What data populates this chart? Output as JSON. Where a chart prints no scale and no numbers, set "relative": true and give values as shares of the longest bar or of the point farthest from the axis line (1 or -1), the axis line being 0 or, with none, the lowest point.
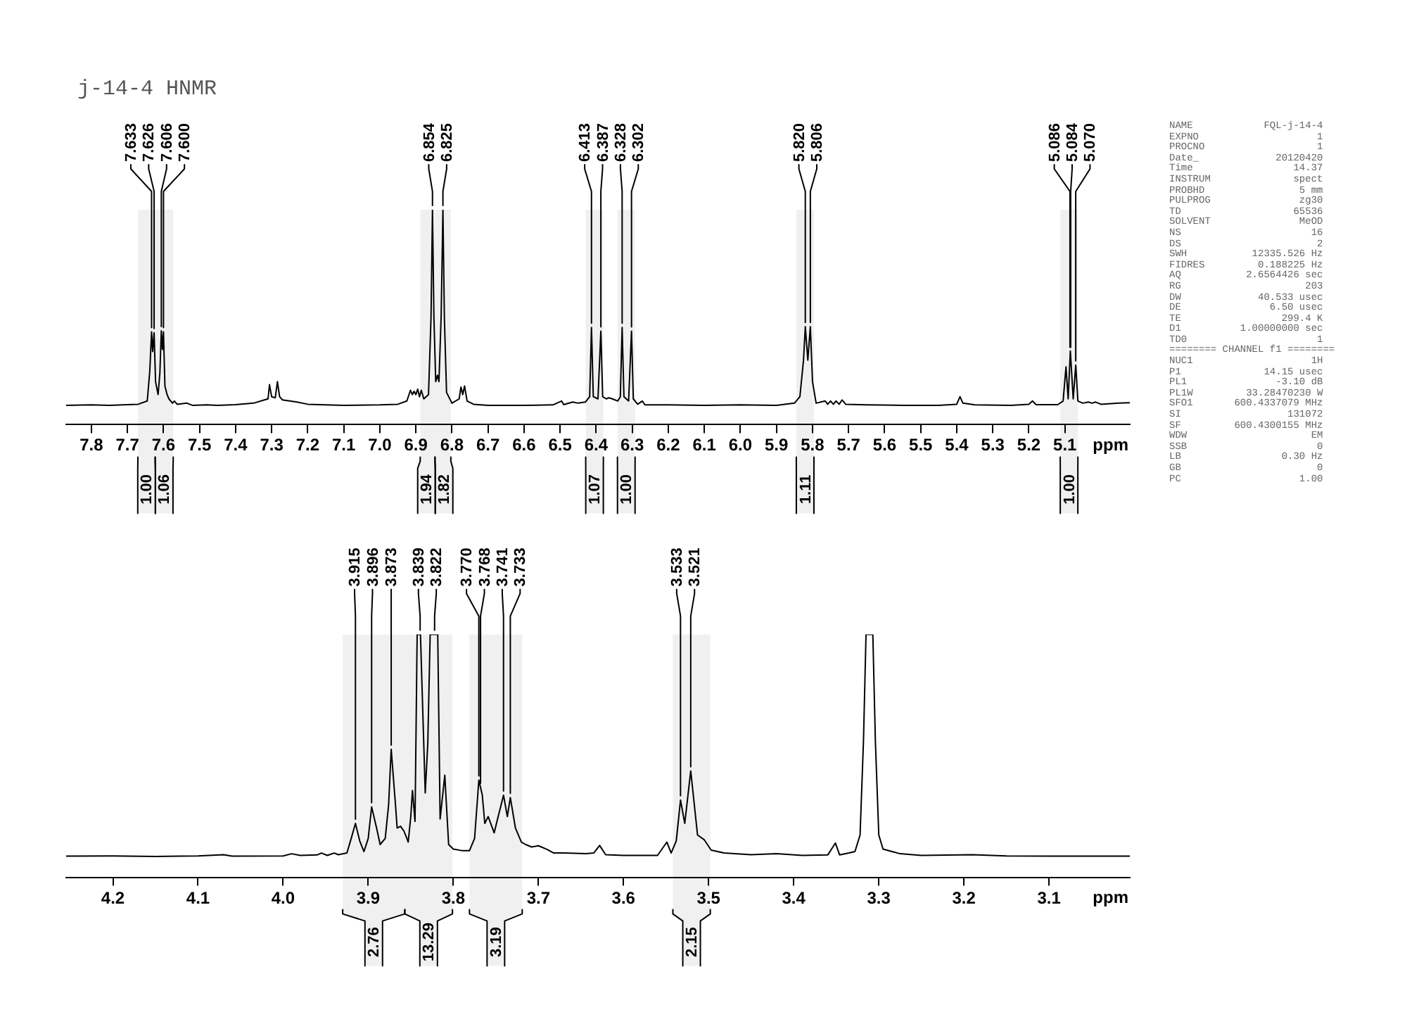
{
  "chart_data": [
    {
      "type": "line",
      "title": "j-14-4 HNMR",
      "xlabel": "ppm",
      "relative": true,
      "color": "#000000",
      "marker": "none",
      "xlim": [
        7.87,
        4.92
      ],
      "xticks": [
        7.8,
        7.7,
        7.6,
        7.5,
        7.4,
        7.3,
        7.2,
        7.1,
        {
          "value": 7,
          "label": "7.0"
        },
        6.9,
        6.8,
        6.7,
        6.6,
        6.5,
        6.4,
        6.3,
        6.2,
        6.1,
        {
          "value": 6,
          "label": "6.0"
        },
        5.9,
        5.8,
        5.7,
        5.6,
        5.5,
        5.4,
        5.3,
        5.2,
        5.1
      ],
      "x": [
        7.87,
        7.8,
        7.75,
        7.7,
        7.67,
        7.645,
        7.638,
        7.633,
        7.63,
        7.626,
        7.622,
        7.615,
        7.61,
        7.606,
        7.603,
        7.6,
        7.596,
        7.59,
        7.585,
        7.575,
        7.57,
        7.562,
        7.535,
        7.52,
        7.48,
        7.45,
        7.4,
        7.35,
        7.32,
        7.31,
        7.306,
        7.3,
        7.29,
        7.284,
        7.278,
        7.27,
        7.25,
        7.23,
        7.2,
        7.1,
        7.0,
        6.95,
        6.925,
        6.915,
        6.91,
        6.905,
        6.9,
        6.895,
        6.89,
        6.885,
        6.878,
        6.865,
        6.858,
        6.854,
        6.85,
        6.845,
        6.84,
        6.836,
        6.83,
        6.825,
        6.821,
        6.815,
        6.8,
        6.78,
        6.775,
        6.77,
        6.765,
        6.758,
        6.74,
        6.7,
        6.6,
        6.52,
        6.496,
        6.49,
        6.465,
        6.45,
        6.43,
        6.418,
        6.413,
        6.408,
        6.395,
        6.387,
        6.382,
        6.372,
        6.365,
        6.355,
        6.34,
        6.333,
        6.328,
        6.323,
        6.31,
        6.302,
        6.297,
        6.285,
        6.272,
        6.265,
        6.2,
        6.1,
        6.0,
        5.9,
        5.85,
        5.835,
        5.825,
        5.82,
        5.813,
        5.806,
        5.8,
        5.79,
        5.765,
        5.758,
        5.75,
        5.742,
        5.735,
        5.726,
        5.718,
        5.708,
        5.65,
        5.55,
        5.45,
        5.4,
        5.391,
        5.383,
        5.35,
        5.25,
        5.2,
        5.19,
        5.18,
        5.12,
        5.105,
        5.097,
        5.091,
        5.085,
        5.077,
        5.07,
        5.064,
        5.05,
        5.035,
        5.025,
        5.015,
        5.0,
        4.95,
        4.92
      ],
      "values": [
        0.09,
        0.092,
        0.09,
        0.093,
        0.095,
        0.11,
        0.25,
        0.432,
        0.34,
        0.428,
        0.2,
        0.14,
        0.24,
        0.437,
        0.35,
        0.432,
        0.18,
        0.14,
        0.12,
        0.1,
        0.11,
        0.095,
        0.1,
        0.09,
        0.092,
        0.09,
        0.093,
        0.1,
        0.115,
        0.12,
        0.186,
        0.13,
        0.125,
        0.2,
        0.13,
        0.115,
        0.11,
        0.105,
        0.095,
        0.09,
        0.092,
        0.095,
        0.11,
        0.16,
        0.14,
        0.155,
        0.14,
        0.165,
        0.13,
        0.16,
        0.12,
        0.14,
        0.5,
        1,
        0.5,
        0.2,
        0.23,
        0.2,
        0.5,
        1,
        0.5,
        0.15,
        0.1,
        0.12,
        0.175,
        0.14,
        0.18,
        0.11,
        0.095,
        0.09,
        0.09,
        0.092,
        0.11,
        0.093,
        0.105,
        0.1,
        0.105,
        0.13,
        0.452,
        0.13,
        0.12,
        0.435,
        0.13,
        0.12,
        0.125,
        0.12,
        0.11,
        0.13,
        0.452,
        0.13,
        0.11,
        0.435,
        0.12,
        0.095,
        0.11,
        0.092,
        0.092,
        0.09,
        0.092,
        0.09,
        0.1,
        0.13,
        0.3,
        0.456,
        0.3,
        0.456,
        0.2,
        0.1,
        0.11,
        0.095,
        0.11,
        0.095,
        0.11,
        0.095,
        0.115,
        0.095,
        0.092,
        0.09,
        0.09,
        0.095,
        0.13,
        0.1,
        0.092,
        0.09,
        0.095,
        0.11,
        0.093,
        0.093,
        0.11,
        0.269,
        0.12,
        0.343,
        0.12,
        0.277,
        0.11,
        0.1,
        0.105,
        0.1,
        0.105,
        0.095,
        0.1,
        0.102
      ],
      "annotations": [
        {
          "text": "7.633",
          "x": 7.633,
          "y": 0.432
        },
        {
          "text": "7.626",
          "x": 7.626,
          "y": 0.428
        },
        {
          "text": "7.606",
          "x": 7.606,
          "y": 0.437
        },
        {
          "text": "7.600",
          "x": 7.6,
          "y": 0.432
        },
        {
          "text": "6.854",
          "x": 6.854,
          "y": 1
        },
        {
          "text": "6.825",
          "x": 6.825,
          "y": 1
        },
        {
          "text": "6.413",
          "x": 6.413,
          "y": 0.452
        },
        {
          "text": "6.387",
          "x": 6.387,
          "y": 0.435
        },
        {
          "text": "6.328",
          "x": 6.328,
          "y": 0.452
        },
        {
          "text": "6.302",
          "x": 6.302,
          "y": 0.435
        },
        {
          "text": "5.820",
          "x": 5.82,
          "y": 0.456
        },
        {
          "text": "5.806",
          "x": 5.806,
          "y": 0.456
        },
        {
          "text": "5.086",
          "x": 5.086,
          "y": 0.34
        },
        {
          "text": "5.084",
          "x": 5.084,
          "y": 0.34
        },
        {
          "text": "5.070",
          "x": 5.07,
          "y": 0.277
        }
      ],
      "bands": [
        {
          "axis": "x",
          "from": 7.671,
          "to": 7.623,
          "label": "1.00"
        },
        {
          "axis": "x",
          "from": 7.623,
          "to": 7.573,
          "label": "1.06"
        },
        {
          "axis": "x",
          "from": 6.888,
          "to": 6.847,
          "label": "1.94"
        },
        {
          "axis": "x",
          "from": 6.847,
          "to": 6.803,
          "label": "1.82"
        },
        {
          "axis": "x",
          "from": 6.429,
          "to": 6.38,
          "label": "1.07"
        },
        {
          "axis": "x",
          "from": 6.341,
          "to": 6.292,
          "label": "1.00"
        },
        {
          "axis": "x",
          "from": 5.845,
          "to": 5.796,
          "label": "1.11"
        },
        {
          "axis": "x",
          "from": 5.113,
          "to": 5.064,
          "label": "1.00"
        }
      ]
    },
    {
      "type": "line",
      "xlabel": "ppm",
      "relative": true,
      "color": "#000000",
      "marker": "none",
      "xlim": [
        4.255,
        3.005
      ],
      "xticks": [
        4.2,
        4.1,
        {
          "value": 4,
          "label": "4.0"
        },
        3.9,
        3.8,
        3.7,
        3.6,
        3.5,
        3.4,
        3.3,
        3.2,
        3.1
      ],
      "x": [
        4.255,
        4.2,
        4.15,
        4.1,
        4.07,
        4.06,
        4.0,
        3.99,
        3.98,
        3.96,
        3.955,
        3.948,
        3.94,
        3.935,
        3.925,
        3.92,
        3.915,
        3.91,
        3.905,
        3.9,
        3.896,
        3.89,
        3.886,
        3.88,
        3.876,
        3.873,
        3.868,
        3.866,
        3.862,
        3.858,
        3.855,
        3.853,
        3.85,
        3.848,
        3.845,
        3.8425,
        3.8386,
        3.833,
        3.83,
        3.8272,
        3.8183,
        3.8155,
        3.81,
        3.8055,
        3.8,
        3.79,
        3.781,
        3.775,
        3.77,
        3.766,
        3.763,
        3.759,
        3.752,
        3.748,
        3.741,
        3.7365,
        3.733,
        3.727,
        3.72,
        3.715,
        3.708,
        3.7,
        3.69,
        3.682,
        3.67,
        3.644,
        3.635,
        3.628,
        3.621,
        3.6,
        3.56,
        3.549,
        3.544,
        3.538,
        3.533,
        3.528,
        3.521,
        3.513,
        3.505,
        3.497,
        3.482,
        3.45,
        3.42,
        3.39,
        3.36,
        3.351,
        3.346,
        3.335,
        3.328,
        3.322,
        3.318,
        3.315,
        3.307,
        3.304,
        3.3,
        3.295,
        3.275,
        3.25,
        3.19,
        3.15,
        3.1,
        3.05,
        3.005
      ],
      "values": [
        0.087,
        0.088,
        0.086,
        0.088,
        0.093,
        0.087,
        0.088,
        0.097,
        0.09,
        0.092,
        0.1,
        0.09,
        0.1,
        0.093,
        0.1,
        0.16,
        0.222,
        0.15,
        0.106,
        0.16,
        0.29,
        0.2,
        0.135,
        0.16,
        0.3,
        0.527,
        0.3,
        0.203,
        0.21,
        0.19,
        0.164,
        0.145,
        0.25,
        0.357,
        0.23,
        1,
        1,
        0.347,
        0.55,
        1,
        1,
        0.24,
        0.42,
        0.135,
        0.116,
        0.11,
        0.11,
        0.16,
        0.4,
        0.34,
        0.222,
        0.25,
        0.183,
        0.24,
        0.338,
        0.25,
        0.328,
        0.203,
        0.145,
        0.135,
        0.125,
        0.13,
        0.115,
        0.1,
        0.1,
        0.097,
        0.1,
        0.131,
        0.093,
        0.09,
        0.09,
        0.145,
        0.1,
        0.15,
        0.318,
        0.222,
        0.438,
        0.174,
        0.154,
        0.112,
        0.1,
        0.093,
        0.097,
        0.09,
        0.092,
        0.141,
        0.092,
        0.1,
        0.106,
        0.174,
        0.56,
        1,
        1,
        0.56,
        0.174,
        0.116,
        0.097,
        0.09,
        0.093,
        0.088,
        0.087,
        0.087,
        0.087
      ],
      "annotations": [
        {
          "text": "3.915",
          "x": 3.915,
          "y": 0.222
        },
        {
          "text": "3.896",
          "x": 3.896,
          "y": 0.29
        },
        {
          "text": "3.873",
          "x": 3.873,
          "y": 0.527
        },
        {
          "text": "3.839",
          "x": 3.839,
          "y": 1
        },
        {
          "text": "3.822",
          "x": 3.822,
          "y": 1
        },
        {
          "text": "3.770",
          "x": 3.77,
          "y": 0.4
        },
        {
          "text": "3.768",
          "x": 3.768,
          "y": 0.37
        },
        {
          "text": "3.741",
          "x": 3.741,
          "y": 0.338
        },
        {
          "text": "3.733",
          "x": 3.733,
          "y": 0.328
        },
        {
          "text": "3.533",
          "x": 3.533,
          "y": 0.318
        },
        {
          "text": "3.521",
          "x": 3.521,
          "y": 0.438
        }
      ],
      "bands": [
        {
          "axis": "x",
          "from": 3.93,
          "to": 3.857,
          "label": "2.76"
        },
        {
          "axis": "x",
          "from": 3.857,
          "to": 3.801,
          "label": "13.29"
        },
        {
          "axis": "x",
          "from": 3.781,
          "to": 3.719,
          "label": "3.19"
        },
        {
          "axis": "x",
          "from": 3.542,
          "to": 3.498,
          "label": "2.15"
        }
      ]
    },
    {
      "type": "other",
      "annotations": [
        "NAME FQL-j-14-4",
        "EXPNO 1",
        "PROCNO 1",
        "Date_ 20120420",
        "Time 14.37",
        "INSTRUM spect",
        "PROBHD 5 mm",
        "PULPROG zg30",
        "TD 65536",
        "SOLVENT MeOD",
        "NS 16",
        "DS 2",
        "SWH 12335.526 Hz",
        "FIDRES 0.188225 Hz",
        "AQ 2.6564426 sec",
        "RG 203",
        "DW 40.533 usec",
        "DE 6.50 usec",
        "TE 299.4 K",
        "D1 1.00000000 sec",
        "TD0 1",
        "======== CHANNEL f1 ========",
        "NUC1 1H",
        "P1 14.15 usec",
        "PL1 -3.10 dB",
        "PL1W 33.28470230 W",
        "SFO1 600.4337079 MHz",
        "SI 131072",
        "SF 600.4300155 MHz",
        "WDW EM",
        "SSB 0",
        "LB 0.30 Hz",
        "GB 0",
        "PC 1.00"
      ]
    }
  ]
}
